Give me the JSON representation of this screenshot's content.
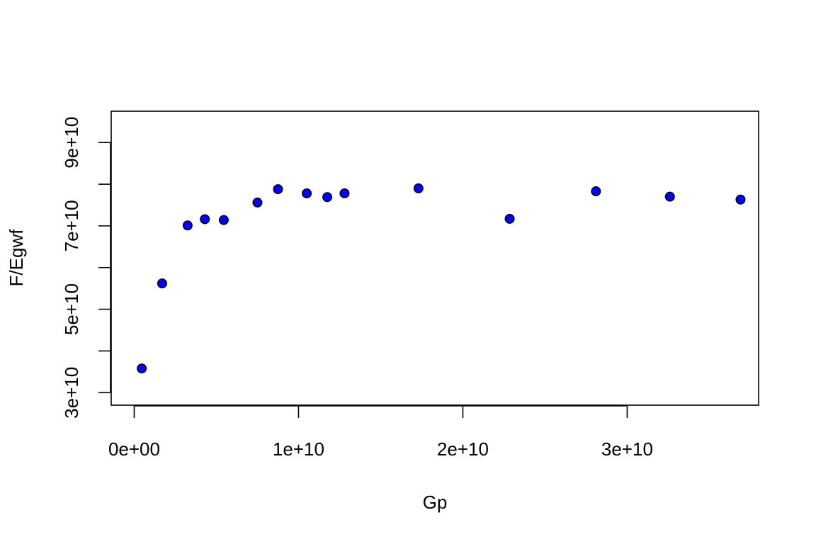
{
  "chart_data": {
    "type": "scatter",
    "title": "",
    "xlabel": "Gp",
    "ylabel": "F/Egwf",
    "xlim": [
      -1400000000.0,
      38000000000.0
    ],
    "ylim": [
      27000000000.0,
      97500000000.0
    ],
    "x_ticks": [
      0,
      10000000000.0,
      20000000000.0,
      30000000000.0
    ],
    "x_tick_labels": [
      "0e+00",
      "1e+10",
      "2e+10",
      "3e+10"
    ],
    "y_ticks": [
      30000000000.0,
      40000000000.0,
      50000000000.0,
      60000000000.0,
      70000000000.0,
      80000000000.0,
      90000000000.0
    ],
    "y_tick_labels": [
      "3e+10",
      "",
      "5e+10",
      "",
      "7e+10",
      "",
      "9e+10"
    ],
    "grid": false,
    "legend": "none",
    "marker_fill": "#0000ff",
    "marker_edge": "#000000",
    "series": [
      {
        "x": [
          460000000.0,
          1700000000.0,
          3250000000.0,
          4300000000.0,
          5450000000.0,
          7500000000.0,
          8750000000.0,
          10500000000.0,
          11750000000.0,
          12800000000.0,
          17300000000.0,
          22850000000.0,
          28100000000.0,
          32600000000.0,
          36900000000.0
        ],
        "y": [
          35800000000.0,
          56200000000.0,
          70100000000.0,
          71600000000.0,
          71400000000.0,
          75600000000.0,
          78800000000.0,
          77800000000.0,
          76900000000.0,
          77800000000.0,
          79000000000.0,
          71700000000.0,
          78300000000.0,
          77000000000.0,
          76300000000.0
        ]
      }
    ]
  }
}
